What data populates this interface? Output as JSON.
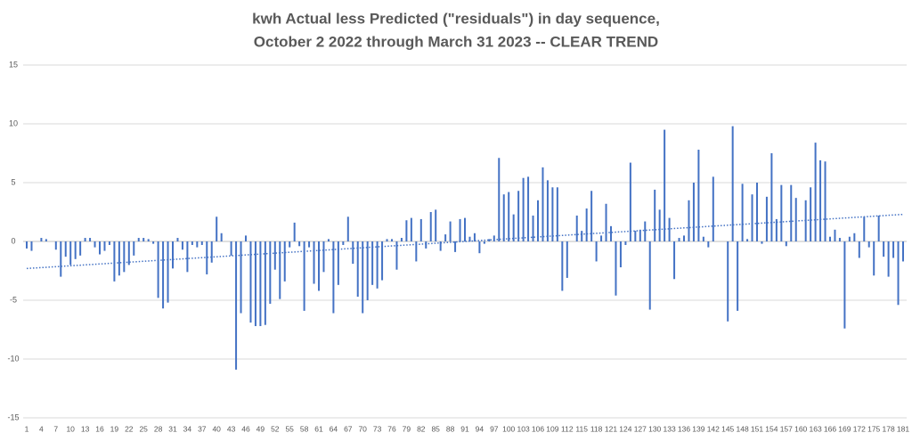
{
  "chart_data": {
    "type": "bar",
    "title": [
      "kwh Actual less Predicted (\"residuals\") in day sequence,",
      "October 2 2022 through March 31 2023 -- CLEAR TREND"
    ],
    "categories": [
      1,
      null,
      null,
      4,
      null,
      null,
      7,
      null,
      null,
      10,
      null,
      null,
      13,
      null,
      null,
      16,
      null,
      null,
      19,
      null,
      null,
      22,
      null,
      null,
      25,
      null,
      null,
      28,
      null,
      null,
      31,
      null,
      null,
      34,
      null,
      null,
      37,
      null,
      null,
      40,
      null,
      null,
      43,
      null,
      null,
      46,
      null,
      null,
      49,
      null,
      null,
      52,
      null,
      null,
      55,
      null,
      null,
      58,
      null,
      null,
      61,
      null,
      null,
      64,
      null,
      null,
      67,
      null,
      null,
      70,
      null,
      null,
      73,
      null,
      null,
      76,
      null,
      null,
      79,
      null,
      null,
      82,
      null,
      null,
      85,
      null,
      null,
      88,
      null,
      null,
      91,
      null,
      null,
      94,
      null,
      null,
      97,
      null,
      null,
      100,
      null,
      null,
      103,
      null,
      null,
      106,
      null,
      null,
      109,
      null,
      null,
      112,
      null,
      null,
      115,
      null,
      null,
      118,
      null,
      null,
      121,
      null,
      null,
      124,
      null,
      null,
      127,
      null,
      null,
      130,
      null,
      null,
      133,
      null,
      null,
      136,
      null,
      null,
      139,
      null,
      null,
      142,
      null,
      null,
      145,
      null,
      null,
      148,
      null,
      null,
      151,
      null,
      null,
      154,
      null,
      null,
      157,
      null,
      null,
      160,
      null,
      null,
      163,
      null,
      null,
      166,
      null,
      null,
      169,
      null,
      null,
      172,
      null,
      null,
      175,
      null,
      null,
      178,
      null,
      null,
      181
    ],
    "values": [
      -0.6,
      -0.8,
      0,
      0.3,
      0.2,
      0,
      -0.7,
      -3.0,
      -1.3,
      -2.0,
      -1.5,
      -1.2,
      0.3,
      0.3,
      -0.5,
      -1.1,
      -0.8,
      -0.3,
      -3.4,
      -2.9,
      -2.6,
      -2.0,
      -1.2,
      0.3,
      0.3,
      0.2,
      -0.2,
      -4.8,
      -5.7,
      -5.2,
      -2.3,
      0.3,
      -0.7,
      -2.6,
      -0.3,
      -0.5,
      -0.3,
      -2.8,
      -1.8,
      2.1,
      0.7,
      0,
      -1.2,
      -10.9,
      -6.1,
      0.5,
      -6.9,
      -7.2,
      -7.2,
      -7.1,
      -5.3,
      -2.4,
      -4.9,
      -3.4,
      -0.5,
      1.6,
      -0.4,
      -5.9,
      -0.5,
      -3.6,
      -4.2,
      -2.6,
      0.2,
      -6.1,
      -3.7,
      -0.3,
      2.1,
      -1.9,
      -4.7,
      -6.1,
      -5.0,
      -3.7,
      -4.0,
      -3.3,
      0.2,
      0.2,
      -2.4,
      0.3,
      1.8,
      2.0,
      -1.7,
      1.9,
      -0.6,
      2.5,
      2.7,
      -0.8,
      0.6,
      1.7,
      -0.9,
      1.9,
      2.0,
      0.4,
      0.7,
      -1.0,
      -0.2,
      0.2,
      0.5,
      7.1,
      4.0,
      4.2,
      2.3,
      4.3,
      5.4,
      5.5,
      2.2,
      3.5,
      6.3,
      5.2,
      4.6,
      4.6,
      -4.2,
      -3.1,
      0,
      2.2,
      0.9,
      2.8,
      4.3,
      -1.7,
      0.5,
      3.2,
      1.3,
      -4.6,
      -2.2,
      -0.3,
      6.7,
      0.9,
      1.0,
      1.7,
      -5.8,
      4.4,
      2.7,
      9.5,
      2.0,
      -3.2,
      0.3,
      0.5,
      3.5,
      5.0,
      7.8,
      0.4,
      -0.5,
      5.5,
      0,
      0,
      -6.8,
      9.8,
      -5.9,
      4.9,
      0.2,
      4.0,
      5.0,
      -0.2,
      3.8,
      7.5,
      1.9,
      4.8,
      -0.4,
      4.8,
      3.7,
      0,
      3.5,
      4.6,
      8.4,
      6.9,
      6.8,
      0.4,
      1.0,
      0.3,
      -7.4,
      0.4,
      0.7,
      -1.4,
      2.1,
      -0.5,
      -2.9,
      2.2,
      -1.3,
      -3.0,
      -1.4,
      -5.4,
      -1.7
    ],
    "color": "#4472c4",
    "trendline": {
      "style": "dotted",
      "values": [
        -2.3,
        2.3
      ]
    },
    "ylim": [
      -15,
      15
    ],
    "yticks": [
      -15,
      -10,
      -5,
      0,
      5,
      10,
      15
    ],
    "grid": true
  }
}
